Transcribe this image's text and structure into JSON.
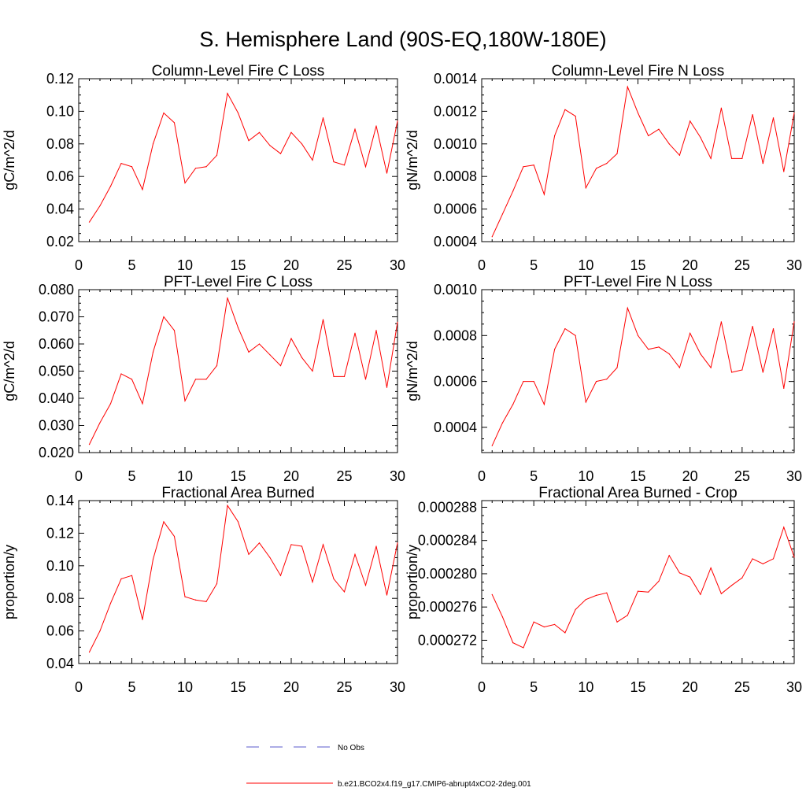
{
  "figure": {
    "title": "S. Hemisphere Land (90S-EQ,180W-180E)"
  },
  "legend": {
    "items": [
      {
        "label": "No Obs",
        "color": "#5a5acd",
        "style": "dashed"
      },
      {
        "label": "b.e21.BCO2x4.f19_g17.CMIP6-abrupt4xCO2-2deg.001",
        "color": "#ff0000",
        "style": "solid"
      }
    ]
  },
  "chart_data": [
    {
      "type": "line",
      "title": "Column-Level Fire C Loss",
      "ylabel": "gC/m^2/d",
      "xlim": [
        0,
        30
      ],
      "ylim": [
        0.02,
        0.12
      ],
      "xticks": [
        0,
        5,
        10,
        15,
        20,
        25,
        30
      ],
      "xtick_labels": [
        "0",
        "5",
        "10",
        "15",
        "20",
        "25",
        "30"
      ],
      "yticks": [
        0.02,
        0.04,
        0.06,
        0.08,
        0.1,
        0.12
      ],
      "ytick_labels": [
        "0.02",
        "0.04",
        "0.06",
        "0.08",
        "0.10",
        "0.12"
      ],
      "x": [
        1,
        2,
        3,
        4,
        5,
        6,
        7,
        8,
        9,
        10,
        11,
        12,
        13,
        14,
        15,
        16,
        17,
        18,
        19,
        20,
        21,
        22,
        23,
        24,
        25,
        26,
        27,
        28,
        29,
        30
      ],
      "series": [
        {
          "name": "b.e21.BCO2x4.f19_g17.CMIP6-abrupt4xCO2-2deg.001",
          "color": "#ff0000",
          "values": [
            0.032,
            0.042,
            0.054,
            0.068,
            0.066,
            0.052,
            0.08,
            0.099,
            0.093,
            0.056,
            0.065,
            0.066,
            0.073,
            0.111,
            0.099,
            0.082,
            0.087,
            0.079,
            0.074,
            0.087,
            0.08,
            0.07,
            0.096,
            0.069,
            0.067,
            0.089,
            0.066,
            0.091,
            0.062,
            0.094
          ]
        }
      ]
    },
    {
      "type": "line",
      "title": "Column-Level Fire N Loss",
      "ylabel": "gN/m^2/d",
      "xlim": [
        0,
        30
      ],
      "ylim": [
        0.0004,
        0.0014
      ],
      "xticks": [
        0,
        5,
        10,
        15,
        20,
        25,
        30
      ],
      "xtick_labels": [
        "0",
        "5",
        "10",
        "15",
        "20",
        "25",
        "30"
      ],
      "yticks": [
        0.0004,
        0.0006,
        0.0008,
        0.001,
        0.0012,
        0.0014
      ],
      "ytick_labels": [
        "0.0004",
        "0.0006",
        "0.0008",
        "0.0010",
        "0.0012",
        "0.0014"
      ],
      "x": [
        1,
        2,
        3,
        4,
        5,
        6,
        7,
        8,
        9,
        10,
        11,
        12,
        13,
        14,
        15,
        16,
        17,
        18,
        19,
        20,
        21,
        22,
        23,
        24,
        25,
        26,
        27,
        28,
        29,
        30
      ],
      "series": [
        {
          "name": "b.e21.BCO2x4.f19_g17.CMIP6-abrupt4xCO2-2deg.001",
          "color": "#ff0000",
          "values": [
            0.00043,
            0.00057,
            0.00071,
            0.00086,
            0.00087,
            0.00069,
            0.00105,
            0.00121,
            0.00117,
            0.00073,
            0.00085,
            0.00088,
            0.00094,
            0.00135,
            0.00119,
            0.00105,
            0.00109,
            0.001,
            0.00093,
            0.00114,
            0.00104,
            0.00091,
            0.00122,
            0.00091,
            0.00091,
            0.00118,
            0.00088,
            0.00116,
            0.00083,
            0.00119
          ]
        }
      ]
    },
    {
      "type": "line",
      "title": "PFT-Level Fire C Loss",
      "ylabel": "gC/m^2/d",
      "xlim": [
        0,
        30
      ],
      "ylim": [
        0.02,
        0.08
      ],
      "xticks": [
        0,
        5,
        10,
        15,
        20,
        25,
        30
      ],
      "xtick_labels": [
        "0",
        "5",
        "10",
        "15",
        "20",
        "25",
        "30"
      ],
      "yticks": [
        0.02,
        0.03,
        0.04,
        0.05,
        0.06,
        0.07,
        0.08
      ],
      "ytick_labels": [
        "0.020",
        "0.030",
        "0.040",
        "0.050",
        "0.060",
        "0.070",
        "0.080"
      ],
      "x": [
        1,
        2,
        3,
        4,
        5,
        6,
        7,
        8,
        9,
        10,
        11,
        12,
        13,
        14,
        15,
        16,
        17,
        18,
        19,
        20,
        21,
        22,
        23,
        24,
        25,
        26,
        27,
        28,
        29,
        30
      ],
      "series": [
        {
          "name": "b.e21.BCO2x4.f19_g17.CMIP6-abrupt4xCO2-2deg.001",
          "color": "#ff0000",
          "values": [
            0.023,
            0.031,
            0.038,
            0.049,
            0.047,
            0.038,
            0.057,
            0.07,
            0.065,
            0.039,
            0.047,
            0.047,
            0.052,
            0.077,
            0.066,
            0.057,
            0.06,
            0.056,
            0.052,
            0.062,
            0.055,
            0.05,
            0.069,
            0.048,
            0.048,
            0.064,
            0.047,
            0.065,
            0.044,
            0.068
          ]
        }
      ]
    },
    {
      "type": "line",
      "title": "PFT-Level Fire N Loss",
      "ylabel": "gN/m^2/d",
      "xlim": [
        0,
        30
      ],
      "ylim": [
        0.00029,
        0.001
      ],
      "xticks": [
        0,
        5,
        10,
        15,
        20,
        25,
        30
      ],
      "xtick_labels": [
        "0",
        "5",
        "10",
        "15",
        "20",
        "25",
        "30"
      ],
      "yticks": [
        0.0004,
        0.0006,
        0.0008,
        0.001
      ],
      "ytick_labels": [
        "0.0004",
        "0.0006",
        "0.0008",
        "0.0010"
      ],
      "x": [
        1,
        2,
        3,
        4,
        5,
        6,
        7,
        8,
        9,
        10,
        11,
        12,
        13,
        14,
        15,
        16,
        17,
        18,
        19,
        20,
        21,
        22,
        23,
        24,
        25,
        26,
        27,
        28,
        29,
        30
      ],
      "series": [
        {
          "name": "b.e21.BCO2x4.f19_g17.CMIP6-abrupt4xCO2-2deg.001",
          "color": "#ff0000",
          "values": [
            0.00032,
            0.00042,
            0.0005,
            0.0006,
            0.0006,
            0.0005,
            0.00074,
            0.00083,
            0.0008,
            0.00051,
            0.0006,
            0.00061,
            0.00066,
            0.00092,
            0.0008,
            0.00074,
            0.00075,
            0.00072,
            0.00066,
            0.00081,
            0.00072,
            0.00066,
            0.00086,
            0.00064,
            0.00065,
            0.00084,
            0.00064,
            0.00083,
            0.00057,
            0.00086
          ]
        }
      ]
    },
    {
      "type": "line",
      "title": "Fractional Area Burned",
      "ylabel": "proportion/y",
      "xlim": [
        0,
        30
      ],
      "ylim": [
        0.04,
        0.14
      ],
      "xticks": [
        0,
        5,
        10,
        15,
        20,
        25,
        30
      ],
      "xtick_labels": [
        "0",
        "5",
        "10",
        "15",
        "20",
        "25",
        "30"
      ],
      "yticks": [
        0.04,
        0.06,
        0.08,
        0.1,
        0.12,
        0.14
      ],
      "ytick_labels": [
        "0.04",
        "0.06",
        "0.08",
        "0.10",
        "0.12",
        "0.14"
      ],
      "x": [
        1,
        2,
        3,
        4,
        5,
        6,
        7,
        8,
        9,
        10,
        11,
        12,
        13,
        14,
        15,
        16,
        17,
        18,
        19,
        20,
        21,
        22,
        23,
        24,
        25,
        26,
        27,
        28,
        29,
        30
      ],
      "series": [
        {
          "name": "b.e21.BCO2x4.f19_g17.CMIP6-abrupt4xCO2-2deg.001",
          "color": "#ff0000",
          "values": [
            0.047,
            0.06,
            0.077,
            0.092,
            0.094,
            0.067,
            0.104,
            0.127,
            0.118,
            0.081,
            0.079,
            0.078,
            0.089,
            0.137,
            0.127,
            0.107,
            0.114,
            0.105,
            0.094,
            0.113,
            0.112,
            0.09,
            0.113,
            0.092,
            0.084,
            0.107,
            0.088,
            0.112,
            0.082,
            0.114
          ]
        }
      ]
    },
    {
      "type": "line",
      "title": "Fractional Area Burned - Crop",
      "ylabel": "proportion/y",
      "xlim": [
        0,
        30
      ],
      "ylim": [
        0.0002692,
        0.0002888
      ],
      "xticks": [
        0,
        5,
        10,
        15,
        20,
        25,
        30
      ],
      "xtick_labels": [
        "0",
        "5",
        "10",
        "15",
        "20",
        "25",
        "30"
      ],
      "yticks": [
        0.000272,
        0.000276,
        0.00028,
        0.000284,
        0.000288
      ],
      "ytick_labels": [
        "0.000272",
        "0.000276",
        "0.000280",
        "0.000284",
        "0.000288"
      ],
      "x": [
        1,
        2,
        3,
        4,
        5,
        6,
        7,
        8,
        9,
        10,
        11,
        12,
        13,
        14,
        15,
        16,
        17,
        18,
        19,
        20,
        21,
        22,
        23,
        24,
        25,
        26,
        27,
        28,
        29,
        30
      ],
      "series": [
        {
          "name": "b.e21.BCO2x4.f19_g17.CMIP6-abrupt4xCO2-2deg.001",
          "color": "#ff0000",
          "values": [
            0.0002775,
            0.0002748,
            0.0002717,
            0.0002711,
            0.0002742,
            0.0002736,
            0.0002739,
            0.0002729,
            0.0002757,
            0.0002769,
            0.0002774,
            0.0002777,
            0.0002742,
            0.000275,
            0.0002779,
            0.0002778,
            0.0002791,
            0.0002822,
            0.0002801,
            0.0002796,
            0.0002775,
            0.0002807,
            0.0002776,
            0.0002786,
            0.0002795,
            0.0002818,
            0.0002812,
            0.0002818,
            0.0002856,
            0.000282
          ]
        }
      ]
    }
  ]
}
